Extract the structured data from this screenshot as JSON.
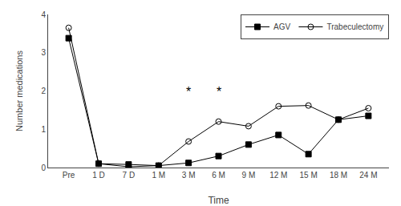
{
  "chart_data": {
    "type": "line",
    "x_label": "Time",
    "y_label": "Number medications",
    "categories": [
      "Pre",
      "1 D",
      "7 D",
      "1 M",
      "3 M",
      "6 M",
      "9 M",
      "12 M",
      "15 M",
      "18 M",
      "24 M"
    ],
    "series": [
      {
        "name": "AGV",
        "color": "#000000",
        "marker": "square",
        "values": [
          3.38,
          0.1,
          0.08,
          0.05,
          0.12,
          0.3,
          0.6,
          0.85,
          0.35,
          1.25,
          1.35
        ]
      },
      {
        "name": "Trabeculectomy",
        "color": "#000000",
        "marker": "circle-open",
        "values": [
          3.65,
          0.1,
          0.02,
          0.05,
          0.68,
          1.2,
          1.08,
          1.6,
          1.62,
          1.25,
          1.55
        ]
      }
    ],
    "annotations": [
      {
        "text": "*",
        "x": "3 M",
        "y": 1.75
      },
      {
        "text": "*",
        "x": "6 M",
        "y": 1.75
      }
    ],
    "ylim": [
      0,
      4
    ],
    "yticks": [
      0,
      1,
      2,
      3,
      4
    ],
    "grid": false,
    "legend": "upper right"
  }
}
